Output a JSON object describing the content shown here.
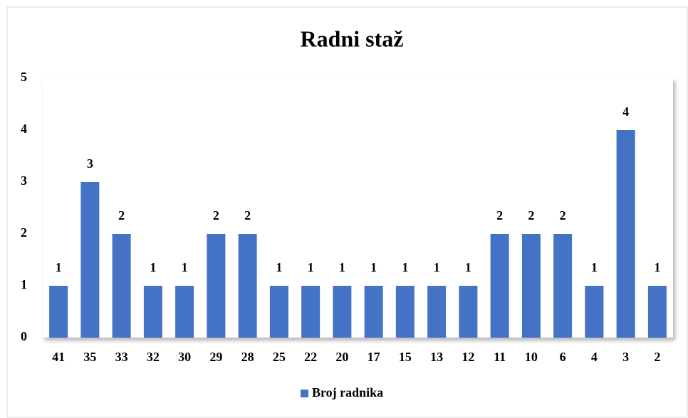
{
  "chart_data": {
    "type": "bar",
    "title": "Radni staž",
    "categories": [
      "41",
      "35",
      "33",
      "32",
      "30",
      "29",
      "28",
      "25",
      "22",
      "20",
      "17",
      "15",
      "13",
      "12",
      "11",
      "10",
      "6",
      "4",
      "3",
      "2"
    ],
    "series": [
      {
        "name": "Broj radnika",
        "color": "#4472c4",
        "values": [
          1,
          3,
          2,
          1,
          1,
          2,
          2,
          1,
          1,
          1,
          1,
          1,
          1,
          1,
          2,
          2,
          2,
          1,
          4,
          1
        ]
      }
    ],
    "ylim": [
      0,
      5
    ],
    "yticks": [
      0,
      1,
      2,
      3,
      4,
      5
    ],
    "grid": false,
    "legend": "bottom"
  }
}
